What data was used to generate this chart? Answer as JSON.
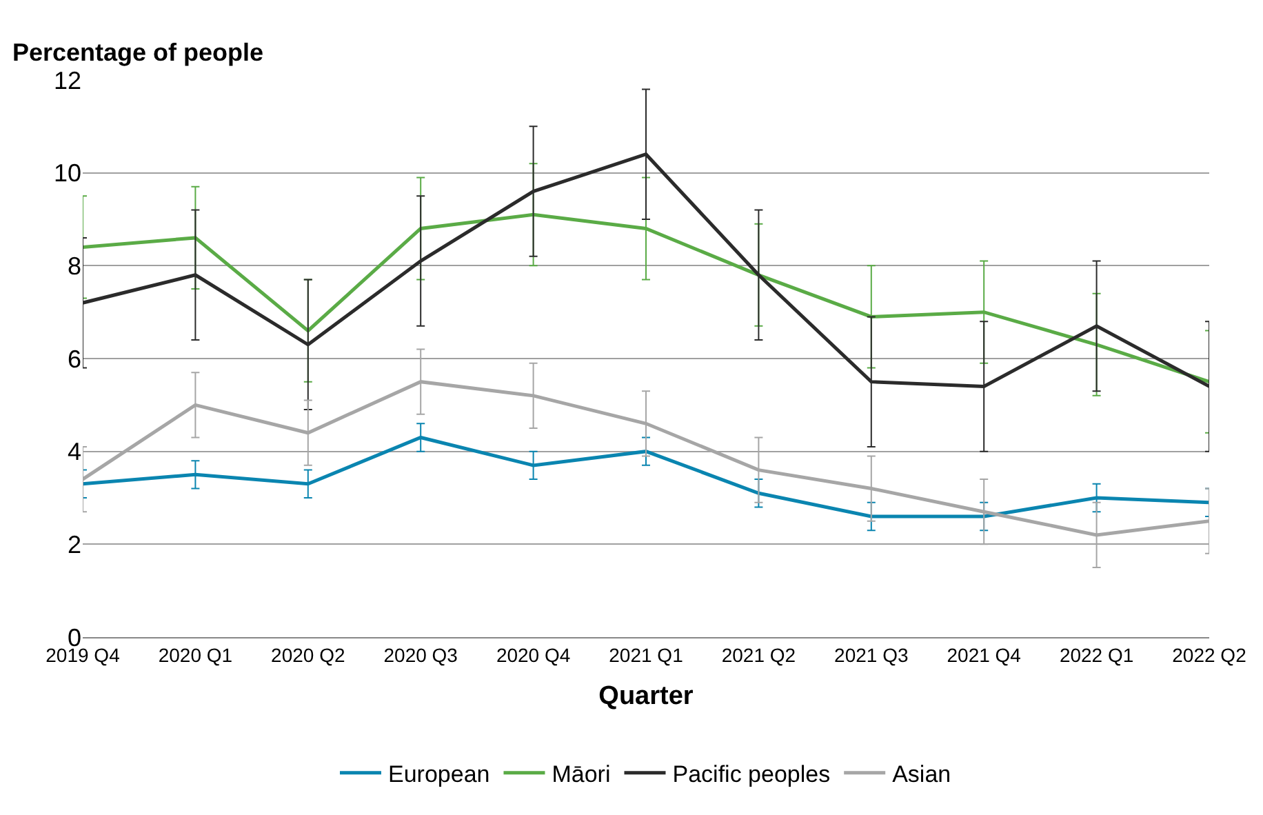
{
  "chart_data": {
    "type": "line",
    "xlabel": "Quarter",
    "ylabel": "Percentage of people",
    "categories": [
      "2019 Q4",
      "2020 Q1",
      "2020 Q2",
      "2020 Q3",
      "2020 Q4",
      "2021 Q1",
      "2021 Q2",
      "2021 Q3",
      "2021 Q4",
      "2022 Q1",
      "2022 Q2"
    ],
    "series": [
      {
        "name": "European",
        "color": "#0a85b0",
        "values": [
          3.3,
          3.5,
          3.3,
          4.3,
          3.7,
          4.0,
          3.1,
          2.6,
          2.6,
          3.0,
          2.9
        ],
        "errors": [
          0.3,
          0.3,
          0.3,
          0.3,
          0.3,
          0.3,
          0.3,
          0.3,
          0.3,
          0.3,
          0.3
        ]
      },
      {
        "name": "Māori",
        "color": "#5aab46",
        "values": [
          8.4,
          8.6,
          6.6,
          8.8,
          9.1,
          8.8,
          7.8,
          6.9,
          7.0,
          6.3,
          5.5
        ],
        "errors": [
          1.1,
          1.1,
          1.1,
          1.1,
          1.1,
          1.1,
          1.1,
          1.1,
          1.1,
          1.1,
          1.1
        ]
      },
      {
        "name": "Pacific peoples",
        "color": "#2b2b2b",
        "values": [
          7.2,
          7.8,
          6.3,
          8.1,
          9.6,
          10.4,
          7.8,
          5.5,
          5.4,
          6.7,
          5.4
        ],
        "errors": [
          1.4,
          1.4,
          1.4,
          1.4,
          1.4,
          1.4,
          1.4,
          1.4,
          1.4,
          1.4,
          1.4
        ]
      },
      {
        "name": "Asian",
        "color": "#a6a6a6",
        "values": [
          3.4,
          5.0,
          4.4,
          5.5,
          5.2,
          4.6,
          3.6,
          3.2,
          2.7,
          2.2,
          2.5
        ],
        "errors": [
          0.7,
          0.7,
          0.7,
          0.7,
          0.7,
          0.7,
          0.7,
          0.7,
          0.7,
          0.7,
          0.7
        ]
      }
    ],
    "ylim": [
      0,
      12
    ],
    "yticks": [
      0,
      2,
      4,
      6,
      8,
      10,
      12
    ],
    "grid": "y",
    "legend": "bottom",
    "marker": "none",
    "line_style": "solid"
  }
}
